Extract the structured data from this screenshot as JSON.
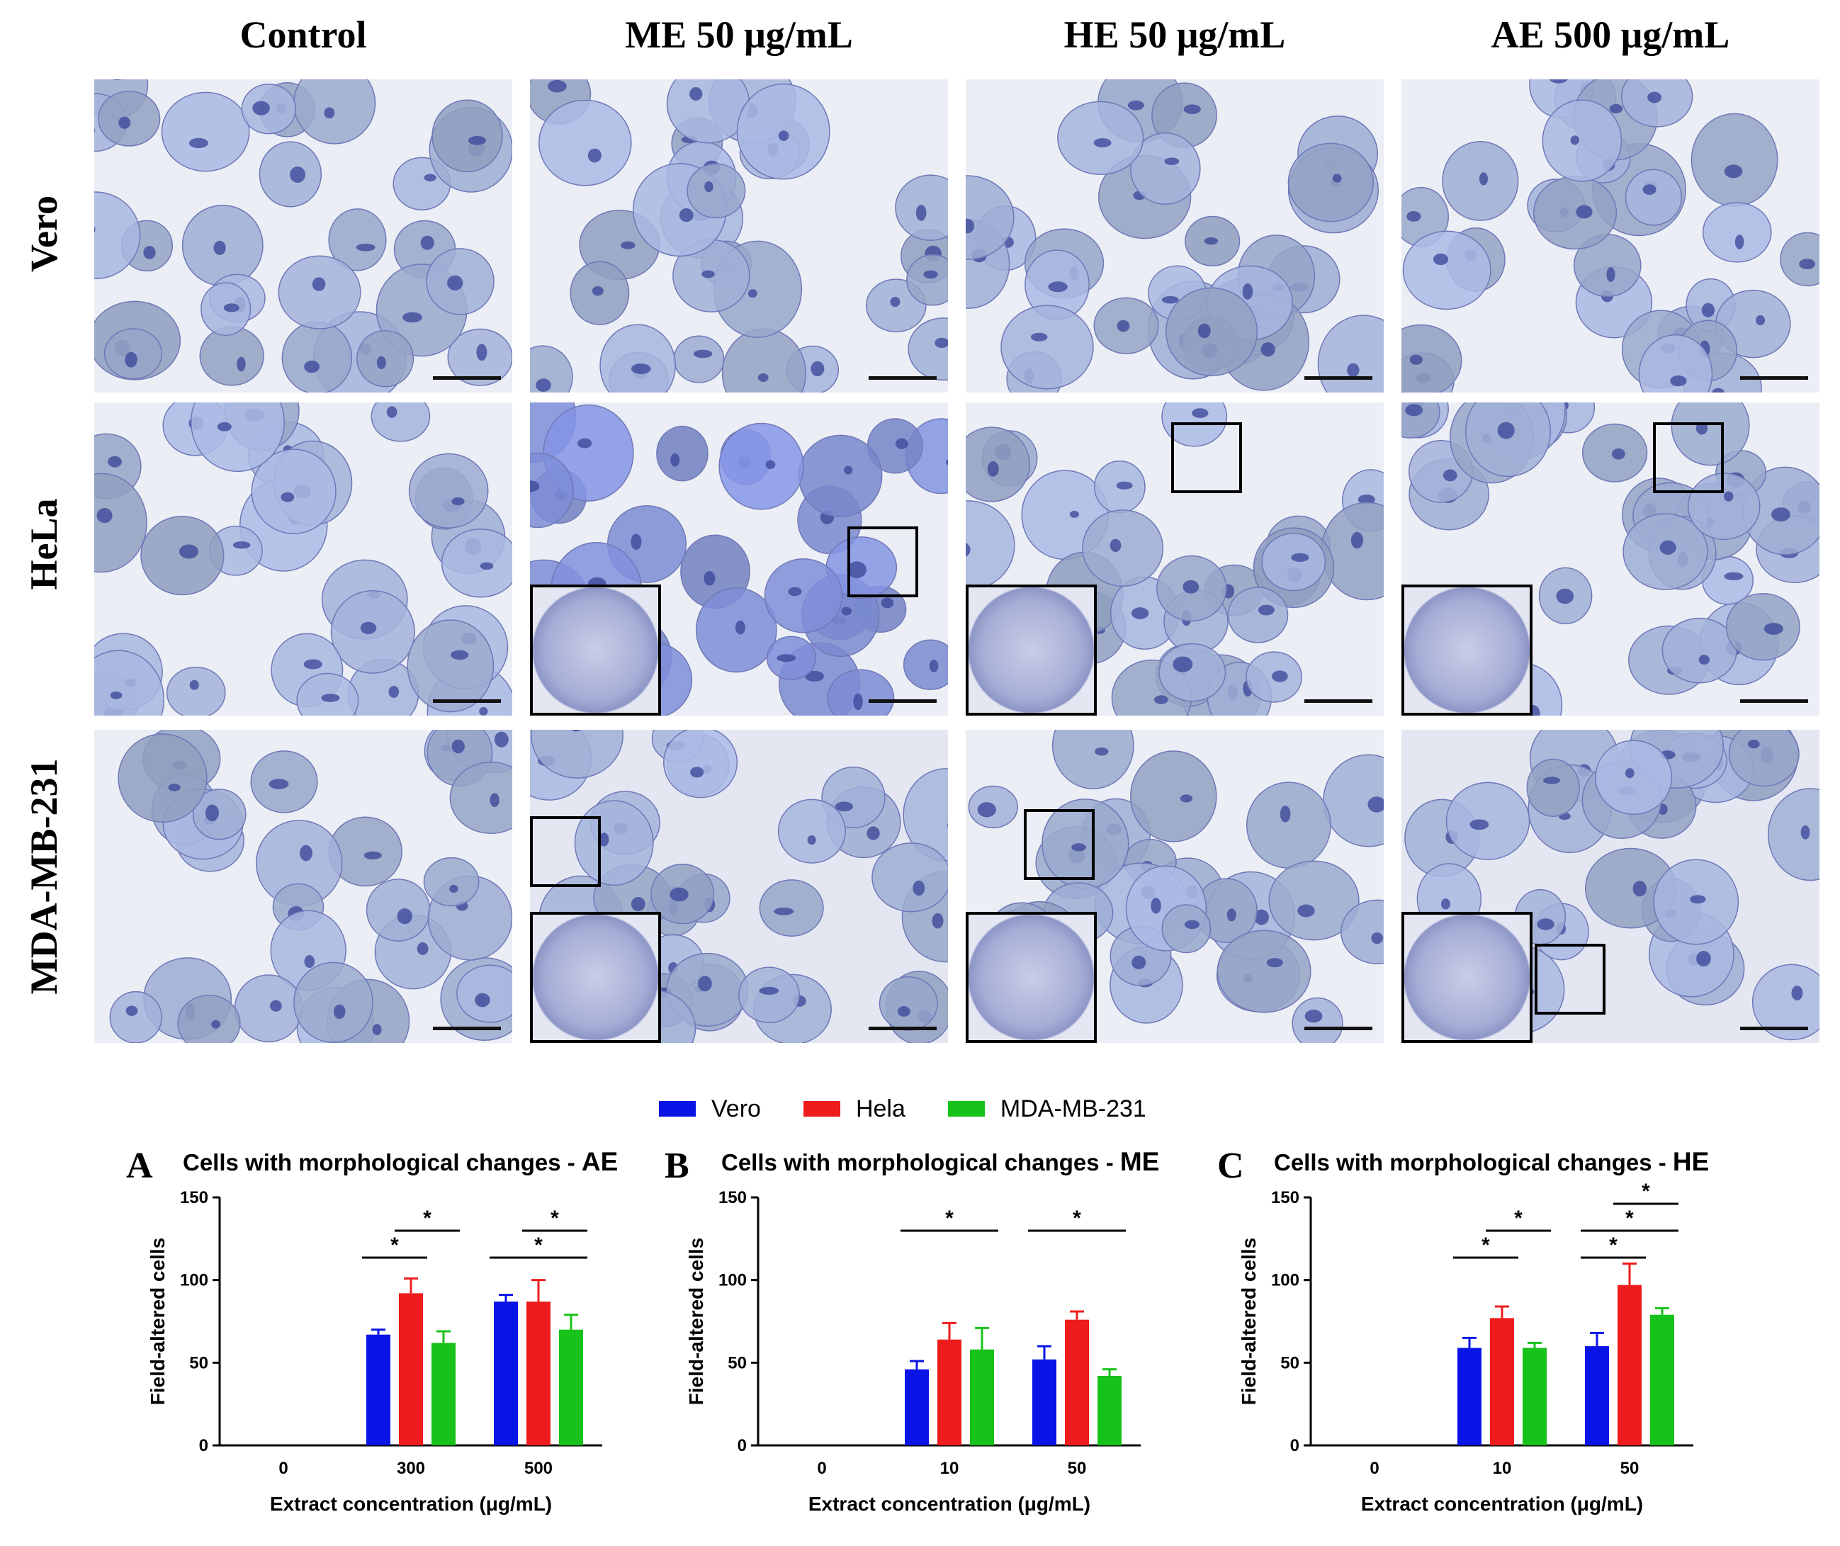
{
  "micrographs": {
    "column_titles": [
      "Control",
      "ME 50 μg/mL",
      "HE 50 μg/mL",
      "AE 500 μg/mL"
    ],
    "row_labels": [
      "Vero",
      "HeLa",
      "MDA-MB-231"
    ]
  },
  "legend": [
    {
      "label": "Vero",
      "color": "#0a14e6"
    },
    {
      "label": "Hela",
      "color": "#ee1c1c"
    },
    {
      "label": "MDA-MB-231",
      "color": "#17c21a"
    }
  ],
  "chart_data": [
    {
      "type": "bar",
      "panel_letter": "A",
      "title": "Cells with morphological changes - ",
      "title_suffix": "AE",
      "xlabel": "Extract concentration (μg/mL)",
      "ylabel": "Field-altered cells",
      "ylim": [
        0,
        150
      ],
      "yticks": [
        0,
        50,
        100,
        150
      ],
      "categories": [
        "0",
        "300",
        "500"
      ],
      "series": [
        {
          "name": "Vero",
          "color": "#0a14e6",
          "values": [
            0,
            67,
            87
          ],
          "errors": [
            0,
            3,
            4
          ]
        },
        {
          "name": "Hela",
          "color": "#ee1c1c",
          "values": [
            0,
            92,
            87
          ],
          "errors": [
            0,
            9,
            13
          ]
        },
        {
          "name": "MDA-MB-231",
          "color": "#17c21a",
          "values": [
            0,
            62,
            70
          ],
          "errors": [
            0,
            7,
            9
          ]
        }
      ],
      "significance": [
        {
          "category": 1,
          "from": 0,
          "to": 1,
          "level": 1,
          "label": "*"
        },
        {
          "category": 1,
          "from": 1,
          "to": 2,
          "level": 2,
          "label": "*"
        },
        {
          "category": 2,
          "from": 0,
          "to": 2,
          "level": 1,
          "label": "*"
        },
        {
          "category": 2,
          "from": 1,
          "to": 2,
          "level": 2,
          "label": "*"
        }
      ]
    },
    {
      "type": "bar",
      "panel_letter": "B",
      "title": "Cells with morphological changes - ",
      "title_suffix": "ME",
      "xlabel": "Extract concentration (μg/mL)",
      "ylabel": "Field-altered cells",
      "ylim": [
        0,
        150
      ],
      "yticks": [
        0,
        50,
        100,
        150
      ],
      "categories": [
        "0",
        "10",
        "50"
      ],
      "series": [
        {
          "name": "Vero",
          "color": "#0a14e6",
          "values": [
            0,
            46,
            52
          ],
          "errors": [
            0,
            5,
            8
          ]
        },
        {
          "name": "Hela",
          "color": "#ee1c1c",
          "values": [
            0,
            64,
            76
          ],
          "errors": [
            0,
            10,
            5
          ]
        },
        {
          "name": "MDA-MB-231",
          "color": "#17c21a",
          "values": [
            0,
            58,
            42
          ],
          "errors": [
            0,
            13,
            4
          ]
        }
      ],
      "significance": [
        {
          "category": 1,
          "from": 0,
          "to": 2,
          "level": 2,
          "label": "*"
        },
        {
          "category": 2,
          "from": 0,
          "to": 2,
          "level": 2,
          "label": "*"
        }
      ]
    },
    {
      "type": "bar",
      "panel_letter": "C",
      "title": "Cells with morphological changes - ",
      "title_suffix": "HE",
      "xlabel": "Extract concentration (μg/mL)",
      "ylabel": "Field-altered cells",
      "ylim": [
        0,
        150
      ],
      "yticks": [
        0,
        50,
        100,
        150
      ],
      "categories": [
        "0",
        "10",
        "50"
      ],
      "series": [
        {
          "name": "Vero",
          "color": "#0a14e6",
          "values": [
            0,
            59,
            60
          ],
          "errors": [
            0,
            6,
            8
          ]
        },
        {
          "name": "Hela",
          "color": "#ee1c1c",
          "values": [
            0,
            77,
            97
          ],
          "errors": [
            0,
            7,
            13
          ]
        },
        {
          "name": "MDA-MB-231",
          "color": "#17c21a",
          "values": [
            0,
            59,
            79
          ],
          "errors": [
            0,
            3,
            4
          ]
        }
      ],
      "significance": [
        {
          "category": 1,
          "from": 0,
          "to": 1,
          "level": 1,
          "label": "*"
        },
        {
          "category": 1,
          "from": 1,
          "to": 2,
          "level": 2,
          "label": "*"
        },
        {
          "category": 2,
          "from": 0,
          "to": 1,
          "level": 1,
          "label": "*"
        },
        {
          "category": 2,
          "from": 0,
          "to": 2,
          "level": 2,
          "label": "*"
        },
        {
          "category": 2,
          "from": 1,
          "to": 2,
          "level": 3,
          "label": "*"
        }
      ]
    }
  ]
}
